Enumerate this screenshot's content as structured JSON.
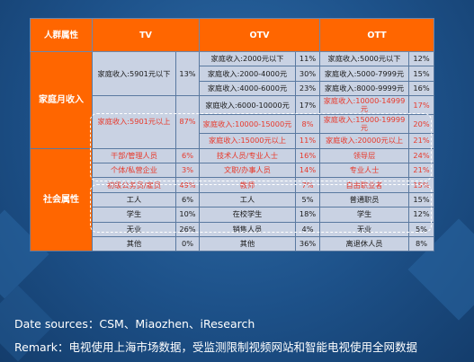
{
  "headers": [
    "人群属性",
    "TV",
    "OTV",
    "OTT"
  ],
  "groups": {
    "income": "家庭月收入",
    "social": "社会属性"
  },
  "rows": [
    {
      "tv": "家庭收入:5901元以下",
      "tv_pct": "13%",
      "otv": "家庭收入:2000元以下",
      "otv_pct": "11%",
      "ott": "家庭收入:5000元以下",
      "ott_pct": "12%"
    },
    {
      "otv": "家庭收入:2000-4000元",
      "otv_pct": "30%",
      "ott": "家庭收入:5000-7999元",
      "ott_pct": "15%"
    },
    {
      "otv": "家庭收入:4000-6000元",
      "otv_pct": "23%",
      "ott": "家庭收入:8000-9999元",
      "ott_pct": "16%"
    },
    {
      "tv": "家庭收入:5901元以上",
      "tv_pct": "87%",
      "otv": "家庭收入:6000-10000元",
      "otv_pct": "17%",
      "ott": "家庭收入:10000-14999元",
      "ott_pct": "17%"
    },
    {
      "otv": "家庭收入:10000-15000元",
      "otv_pct": "8%",
      "ott": "家庭收入:15000-19999元",
      "ott_pct": "20%"
    },
    {
      "otv": "家庭收入:15000元以上",
      "otv_pct": "11%",
      "ott": "家庭收入:20000元以上",
      "ott_pct": "21%"
    },
    {
      "tv": "干部/管理人员",
      "tv_pct": "6%",
      "otv": "技术人员/专业人士",
      "otv_pct": "16%",
      "ott": "领导层",
      "ott_pct": "24%"
    },
    {
      "tv": "个体/私营企业",
      "tv_pct": "3%",
      "otv": "文职/办事人员",
      "otv_pct": "14%",
      "ott": "专业人士",
      "ott_pct": "21%"
    },
    {
      "tv": "初级公务员/雇员",
      "tv_pct": "49%",
      "otv": "教师",
      "otv_pct": "7%",
      "ott": "自由职业者",
      "ott_pct": "15%"
    },
    {
      "tv": "工人",
      "tv_pct": "6%",
      "otv": "工人",
      "otv_pct": "5%",
      "ott": "普通职员",
      "ott_pct": "15%"
    },
    {
      "tv": "学生",
      "tv_pct": "10%",
      "otv": "在校学生",
      "otv_pct": "18%",
      "ott": "学生",
      "ott_pct": "12%"
    },
    {
      "tv": "无业",
      "tv_pct": "26%",
      "otv": "销售人员",
      "otv_pct": "4%",
      "ott": "无业",
      "ott_pct": "5%"
    },
    {
      "tv": "其他",
      "tv_pct": "0%",
      "otv": "其他",
      "otv_pct": "36%",
      "ott": "离退休人员",
      "ott_pct": "8%"
    }
  ],
  "footer": {
    "sources": "Date sources：CSM、Miaozhen、iResearch",
    "remark": "Remark：电视使用上海市场数据，受监测限制视频网站和智能电视使用全网数据"
  },
  "colors": {
    "header": "#ff6600",
    "cell": "#c9d2e3",
    "highlight_text": "#e8392b",
    "background": "#1d5189"
  }
}
